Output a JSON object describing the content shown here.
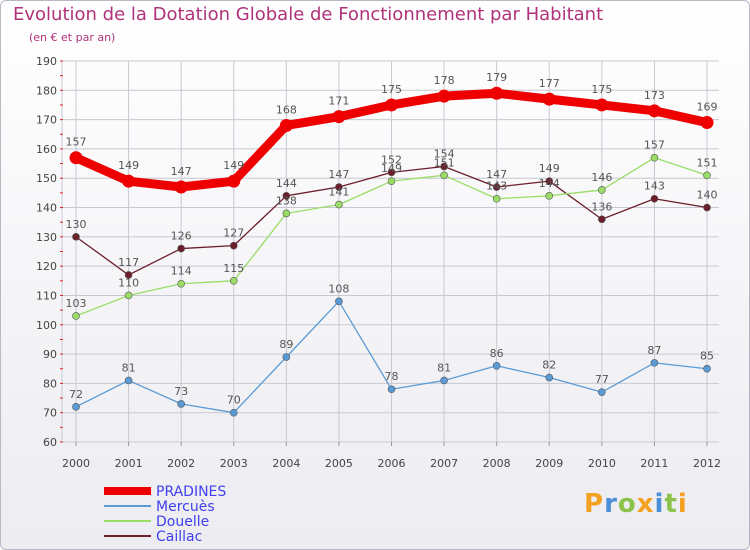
{
  "title": "Evolution de la Dotation Globale de Fonctionnement par Habitant",
  "subtitle": "(en € et par an)",
  "logo": {
    "text": "Proxiti",
    "colors": [
      "#f4a020",
      "#4a90d9",
      "#8bc34a",
      "#f4a020",
      "#4a90d9",
      "#8bc34a",
      "#f4a020"
    ]
  },
  "chart_data": {
    "type": "line",
    "title": "Evolution de la Dotation Globale de Fonctionnement par Habitant",
    "ylabel": "(en € et par an)",
    "xlabel": "",
    "ylim": [
      60,
      190
    ],
    "yticks": [
      60,
      70,
      80,
      90,
      100,
      110,
      120,
      130,
      140,
      150,
      160,
      170,
      180,
      190
    ],
    "categories": [
      "2000",
      "2001",
      "2002",
      "2003",
      "2004",
      "2005",
      "2006",
      "2007",
      "2008",
      "2009",
      "2010",
      "2011",
      "2012"
    ],
    "series": [
      {
        "name": "Caillac",
        "color": "#6b1f2a",
        "values": [
          130,
          117,
          126,
          127,
          144,
          147,
          152,
          154,
          147,
          149,
          136,
          143,
          140
        ]
      },
      {
        "name": "Douelle",
        "color": "#99dd66",
        "values": [
          103,
          110,
          114,
          115,
          138,
          141,
          149,
          151,
          143,
          144,
          146,
          157,
          151
        ]
      },
      {
        "name": "Mercuès",
        "color": "#5b9bd5",
        "values": [
          72,
          81,
          73,
          70,
          89,
          108,
          78,
          81,
          86,
          82,
          77,
          87,
          85
        ]
      },
      {
        "name": "PRADINES",
        "color": "#ee0000",
        "values": [
          157,
          149,
          147,
          149,
          168,
          171,
          175,
          178,
          179,
          177,
          175,
          173,
          169
        ]
      }
    ],
    "legend": [
      {
        "name": "PRADINES",
        "color": "#ee0000",
        "text_color": "#4040ee"
      },
      {
        "name": "Mercuès",
        "color": "#5b9bd5",
        "text_color": "#4040ee"
      },
      {
        "name": "Douelle",
        "color": "#99dd66",
        "text_color": "#4040ee"
      },
      {
        "name": "Caillac",
        "color": "#6b1f2a",
        "text_color": "#4040ee"
      }
    ],
    "grid": true,
    "legend_position": "bottom-left"
  }
}
